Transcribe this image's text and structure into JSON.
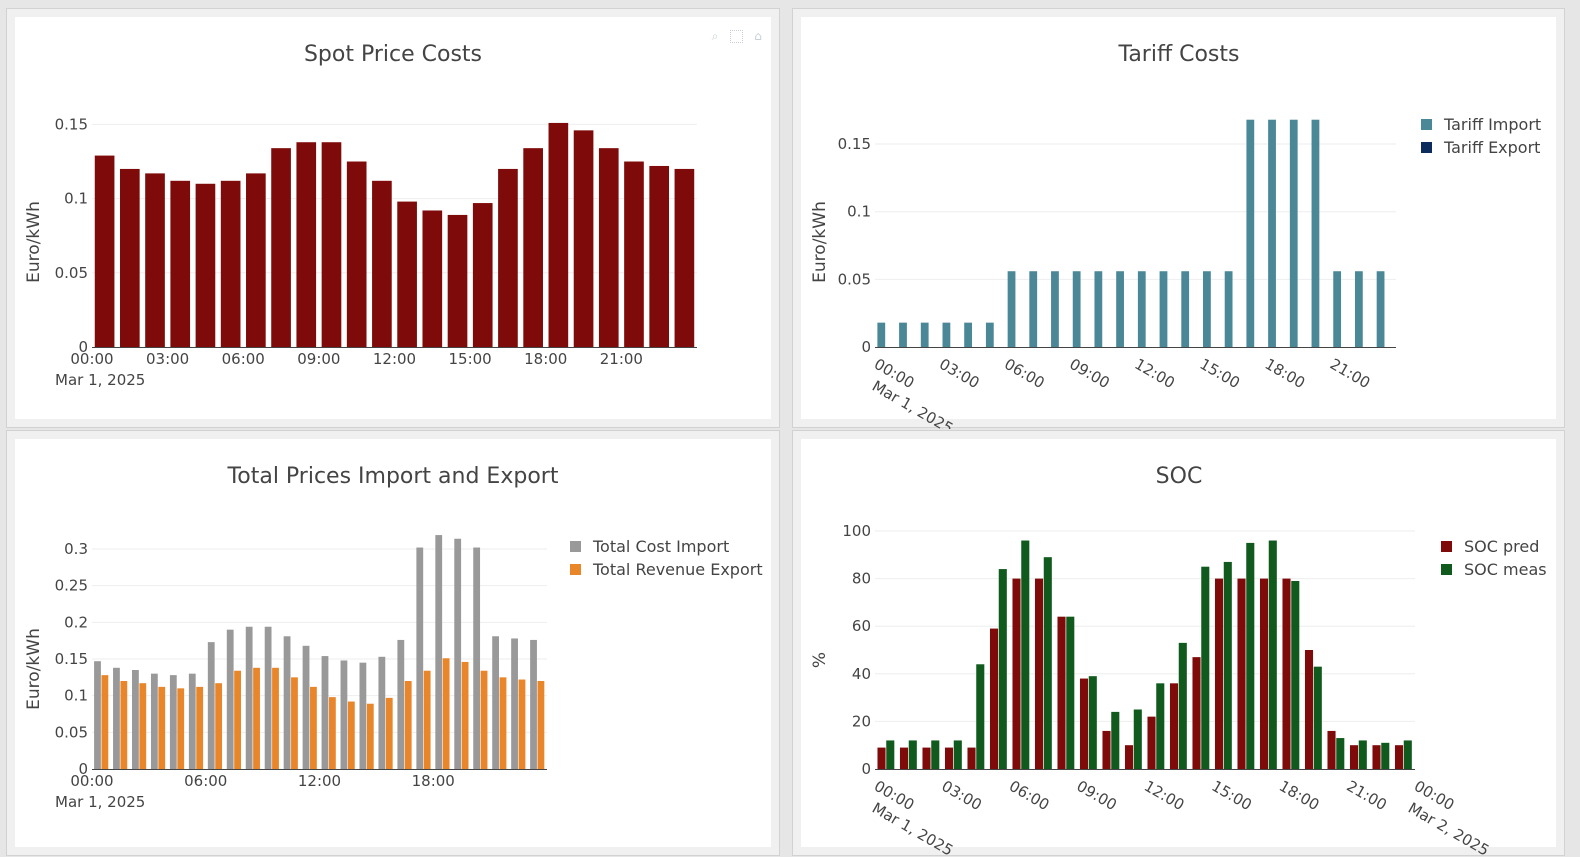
{
  "modebar": {
    "zoom_icon": "zoom-icon",
    "select_icon": "box-select-icon",
    "home_icon": "home-icon"
  },
  "chart_data": [
    {
      "id": "spot",
      "type": "bar",
      "title": "Spot Price Costs",
      "ylabel": "Euro/kWh",
      "xlabel": "",
      "ylim": [
        0,
        0.155
      ],
      "yticks": [
        0,
        0.05,
        0.1,
        0.15
      ],
      "ytick_labels": [
        "0",
        "0.05",
        "0.1",
        "0.15"
      ],
      "x_tick_labels": [
        "00:00",
        "03:00",
        "06:00",
        "09:00",
        "12:00",
        "15:00",
        "18:00",
        "21:00"
      ],
      "x_tick_hours": [
        0,
        3,
        6,
        9,
        12,
        15,
        18,
        21
      ],
      "date_label": "Mar 1, 2025",
      "x_hours": [
        0,
        1,
        2,
        3,
        4,
        5,
        6,
        7,
        8,
        9,
        10,
        11,
        12,
        13,
        14,
        15,
        16,
        17,
        18,
        19,
        20,
        21,
        22,
        23
      ],
      "series": [
        {
          "name": "",
          "color": "#7f0a0a",
          "values": [
            0.129,
            0.12,
            0.117,
            0.112,
            0.11,
            0.112,
            0.117,
            0.134,
            0.138,
            0.138,
            0.125,
            0.112,
            0.098,
            0.092,
            0.089,
            0.097,
            0.12,
            0.134,
            0.151,
            0.146,
            0.134,
            0.125,
            0.122,
            0.12
          ]
        }
      ],
      "legend": false,
      "grid": true
    },
    {
      "id": "tariff",
      "type": "bar",
      "title": "Tariff Costs",
      "ylabel": "Euro/kWh",
      "xlabel": "",
      "ylim": [
        0,
        0.17
      ],
      "yticks": [
        0,
        0.05,
        0.1,
        0.15
      ],
      "ytick_labels": [
        "0",
        "0.05",
        "0.1",
        "0.15"
      ],
      "x_tick_labels": [
        "00:00",
        "03:00",
        "06:00",
        "09:00",
        "12:00",
        "15:00",
        "18:00",
        "21:00"
      ],
      "x_tick_hours": [
        0,
        3,
        6,
        9,
        12,
        15,
        18,
        21
      ],
      "date_label": "Mar 1, 2025",
      "x_hours": [
        0,
        1,
        2,
        3,
        4,
        5,
        6,
        7,
        8,
        9,
        10,
        11,
        12,
        13,
        14,
        15,
        16,
        17,
        18,
        19,
        20,
        21,
        22,
        23
      ],
      "series": [
        {
          "name": "Tariff Import",
          "color": "#4a8797",
          "values": [
            0.018,
            0.018,
            0.018,
            0.018,
            0.018,
            0.018,
            0.056,
            0.056,
            0.056,
            0.056,
            0.056,
            0.056,
            0.056,
            0.056,
            0.056,
            0.056,
            0.056,
            0.168,
            0.168,
            0.168,
            0.168,
            0.056,
            0.056,
            0.056
          ]
        },
        {
          "name": "Tariff Export",
          "color": "#0d2c5e",
          "values": [
            0,
            0,
            0,
            0,
            0,
            0,
            0,
            0,
            0,
            0,
            0,
            0,
            0,
            0,
            0,
            0,
            0,
            0,
            0,
            0,
            0,
            0,
            0,
            0
          ]
        }
      ],
      "legend": true,
      "legend_position": "top-right",
      "grid": true
    },
    {
      "id": "total",
      "type": "bar",
      "title": "Total Prices Import and Export",
      "ylabel": "Euro/kWh",
      "xlabel": "",
      "ylim": [
        0,
        0.3
      ],
      "yticks": [
        0,
        0.05,
        0.1,
        0.15,
        0.2,
        0.25,
        0.3
      ],
      "ytick_labels": [
        "0",
        "0.05",
        "0.1",
        "0.15",
        "0.2",
        "0.25",
        "0.3"
      ],
      "x_tick_labels": [
        "00:00",
        "06:00",
        "12:00",
        "18:00"
      ],
      "x_tick_hours": [
        0,
        6,
        12,
        18
      ],
      "date_label": "Mar 1, 2025",
      "x_hours": [
        0,
        1,
        2,
        3,
        4,
        5,
        6,
        7,
        8,
        9,
        10,
        11,
        12,
        13,
        14,
        15,
        16,
        17,
        18,
        19,
        20,
        21,
        22,
        23
      ],
      "series": [
        {
          "name": "Total Cost Import",
          "color": "#999999",
          "values": [
            0.147,
            0.138,
            0.135,
            0.13,
            0.128,
            0.13,
            0.173,
            0.19,
            0.194,
            0.194,
            0.181,
            0.168,
            0.154,
            0.148,
            0.145,
            0.153,
            0.176,
            0.302,
            0.319,
            0.314,
            0.302,
            0.181,
            0.178,
            0.176
          ]
        },
        {
          "name": "Total Revenue Export",
          "color": "#e9862a",
          "values": [
            0.128,
            0.12,
            0.117,
            0.112,
            0.11,
            0.112,
            0.117,
            0.134,
            0.138,
            0.138,
            0.125,
            0.112,
            0.098,
            0.092,
            0.089,
            0.097,
            0.12,
            0.134,
            0.151,
            0.146,
            0.134,
            0.125,
            0.122,
            0.12
          ]
        }
      ],
      "legend": true,
      "legend_position": "top-right",
      "grid": true
    },
    {
      "id": "soc",
      "type": "bar",
      "title": "SOC",
      "ylabel": "%",
      "xlabel": "",
      "ylim": [
        0,
        100
      ],
      "yticks": [
        0,
        20,
        40,
        60,
        80,
        100
      ],
      "ytick_labels": [
        "0",
        "20",
        "40",
        "60",
        "80",
        "100"
      ],
      "x_tick_labels": [
        "00:00",
        "03:00",
        "06:00",
        "09:00",
        "12:00",
        "15:00",
        "18:00",
        "21:00",
        "00:00"
      ],
      "x_tick_hours": [
        0,
        3,
        6,
        9,
        12,
        15,
        18,
        21,
        24
      ],
      "date_label": "Mar 1, 2025",
      "date_label_2": "Mar 2, 2025",
      "x_hours": [
        0,
        1,
        2,
        3,
        4,
        5,
        6,
        7,
        8,
        9,
        10,
        11,
        12,
        13,
        14,
        15,
        16,
        17,
        18,
        19,
        20,
        21,
        22,
        23
      ],
      "series": [
        {
          "name": "SOC pred",
          "color": "#7f0a0a",
          "values": [
            9,
            9,
            9,
            9,
            9,
            59,
            80,
            80,
            64,
            38,
            16,
            10,
            22,
            36,
            47,
            80,
            80,
            80,
            80,
            50,
            16,
            10,
            10,
            10
          ]
        },
        {
          "name": "SOC meas",
          "color": "#0f5a1c",
          "values": [
            12,
            12,
            12,
            12,
            44,
            84,
            96,
            89,
            64,
            39,
            24,
            25,
            36,
            53,
            85,
            87,
            95,
            96,
            79,
            43,
            13,
            12,
            11,
            12
          ]
        }
      ],
      "legend": true,
      "legend_position": "top-right",
      "grid": true
    }
  ]
}
